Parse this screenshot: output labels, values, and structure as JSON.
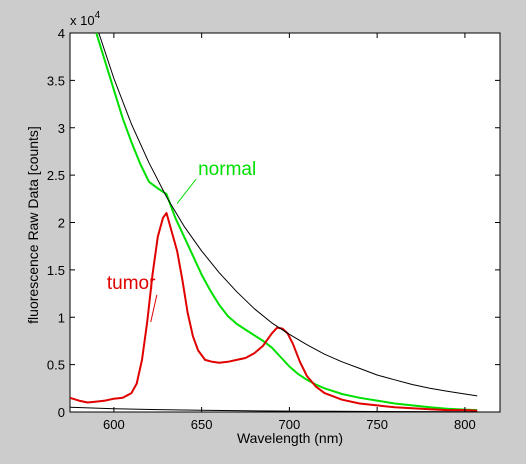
{
  "colors": {
    "figure_background": "#cccccc",
    "axes_background": "#ffffff",
    "axes": "#000000",
    "normal": "#00e000",
    "tumor": "#e00000",
    "fit": "#000000"
  },
  "chart_data": {
    "type": "line",
    "title": "",
    "xlabel": "Wavelength (nm)",
    "ylabel": "fluorescence Raw Data [counts]",
    "xlim": [
      575,
      820
    ],
    "ylim": [
      0,
      40000
    ],
    "y_multiplier": "x 10^4",
    "multiplier": {
      "base": "x 10",
      "exp": "4"
    },
    "grid": false,
    "legend": "none",
    "xticks": [
      {
        "v": 600,
        "label": "600"
      },
      {
        "v": 650,
        "label": "650"
      },
      {
        "v": 700,
        "label": "700"
      },
      {
        "v": 750,
        "label": "750"
      },
      {
        "v": 800,
        "label": "800"
      }
    ],
    "yticks": [
      {
        "v": 0,
        "label": "0"
      },
      {
        "v": 5000,
        "label": "0.5"
      },
      {
        "v": 10000,
        "label": "1"
      },
      {
        "v": 15000,
        "label": "1.5"
      },
      {
        "v": 20000,
        "label": "2"
      },
      {
        "v": 25000,
        "label": "2.5"
      },
      {
        "v": 30000,
        "label": "3"
      },
      {
        "v": 35000,
        "label": "3.5"
      },
      {
        "v": 40000,
        "label": "4"
      }
    ],
    "series": [
      {
        "name": "normal",
        "color": "#00e000",
        "x": [
          590,
          595,
          600,
          605,
          610,
          615,
          620,
          625,
          630,
          635,
          640,
          645,
          650,
          655,
          660,
          665,
          670,
          675,
          680,
          685,
          690,
          695,
          700,
          705,
          710,
          715,
          720,
          730,
          740,
          750,
          760,
          770,
          780,
          790,
          800,
          807
        ],
        "y": [
          40000,
          37000,
          34000,
          31000,
          28500,
          26200,
          24300,
          23600,
          23000,
          20500,
          18500,
          16500,
          14500,
          12800,
          11300,
          10100,
          9300,
          8700,
          8100,
          7500,
          6800,
          5800,
          4800,
          4000,
          3400,
          2900,
          2500,
          1900,
          1500,
          1200,
          900,
          700,
          500,
          350,
          250,
          200
        ]
      },
      {
        "name": "tumor",
        "color": "#e00000",
        "x": [
          575,
          580,
          585,
          590,
          595,
          600,
          605,
          610,
          613,
          616,
          619,
          622,
          625,
          628,
          630,
          633,
          636,
          639,
          642,
          645,
          648,
          652,
          656,
          660,
          665,
          670,
          675,
          680,
          685,
          690,
          693,
          696,
          699,
          702,
          706,
          710,
          715,
          720,
          730,
          740,
          750,
          760,
          770,
          780,
          790,
          800,
          807
        ],
        "y": [
          1500,
          1200,
          1000,
          1100,
          1200,
          1400,
          1500,
          2000,
          3000,
          5500,
          9500,
          14500,
          18500,
          20500,
          21000,
          19000,
          17000,
          14000,
          10500,
          8000,
          6500,
          5500,
          5300,
          5200,
          5300,
          5500,
          5700,
          6200,
          7000,
          8300,
          8900,
          8800,
          8300,
          7200,
          5300,
          3800,
          2700,
          2000,
          1300,
          900,
          700,
          500,
          400,
          300,
          200,
          200,
          150
        ]
      },
      {
        "name": "",
        "color": "#000000",
        "x": [
          585,
          590,
          600,
          610,
          620,
          630,
          640,
          650,
          660,
          670,
          680,
          690,
          700,
          710,
          720,
          730,
          740,
          750,
          760,
          770,
          780,
          790,
          800,
          807
        ],
        "y": [
          44000,
          40800,
          35200,
          30400,
          26300,
          22700,
          19600,
          17000,
          14700,
          12700,
          10900,
          9400,
          8200,
          7100,
          6100,
          5300,
          4600,
          3900,
          3400,
          2900,
          2500,
          2200,
          1900,
          1700
        ]
      },
      {
        "name": "",
        "color": "#000000",
        "x": [
          575,
          600,
          625,
          650,
          675,
          700,
          725,
          750,
          775,
          800,
          807
        ],
        "y": [
          500,
          350,
          250,
          180,
          130,
          90,
          70,
          50,
          40,
          30,
          30
        ]
      }
    ],
    "annotations": [
      {
        "text": "normal",
        "color": "#00e000",
        "x": 648,
        "y": 25000,
        "arrow_to_x": 636,
        "arrow_to_y": 22000
      },
      {
        "text": "tumor",
        "color": "#e00000",
        "x": 596,
        "y": 13000,
        "arrow_to_x": 621,
        "arrow_to_y": 9500
      }
    ]
  }
}
